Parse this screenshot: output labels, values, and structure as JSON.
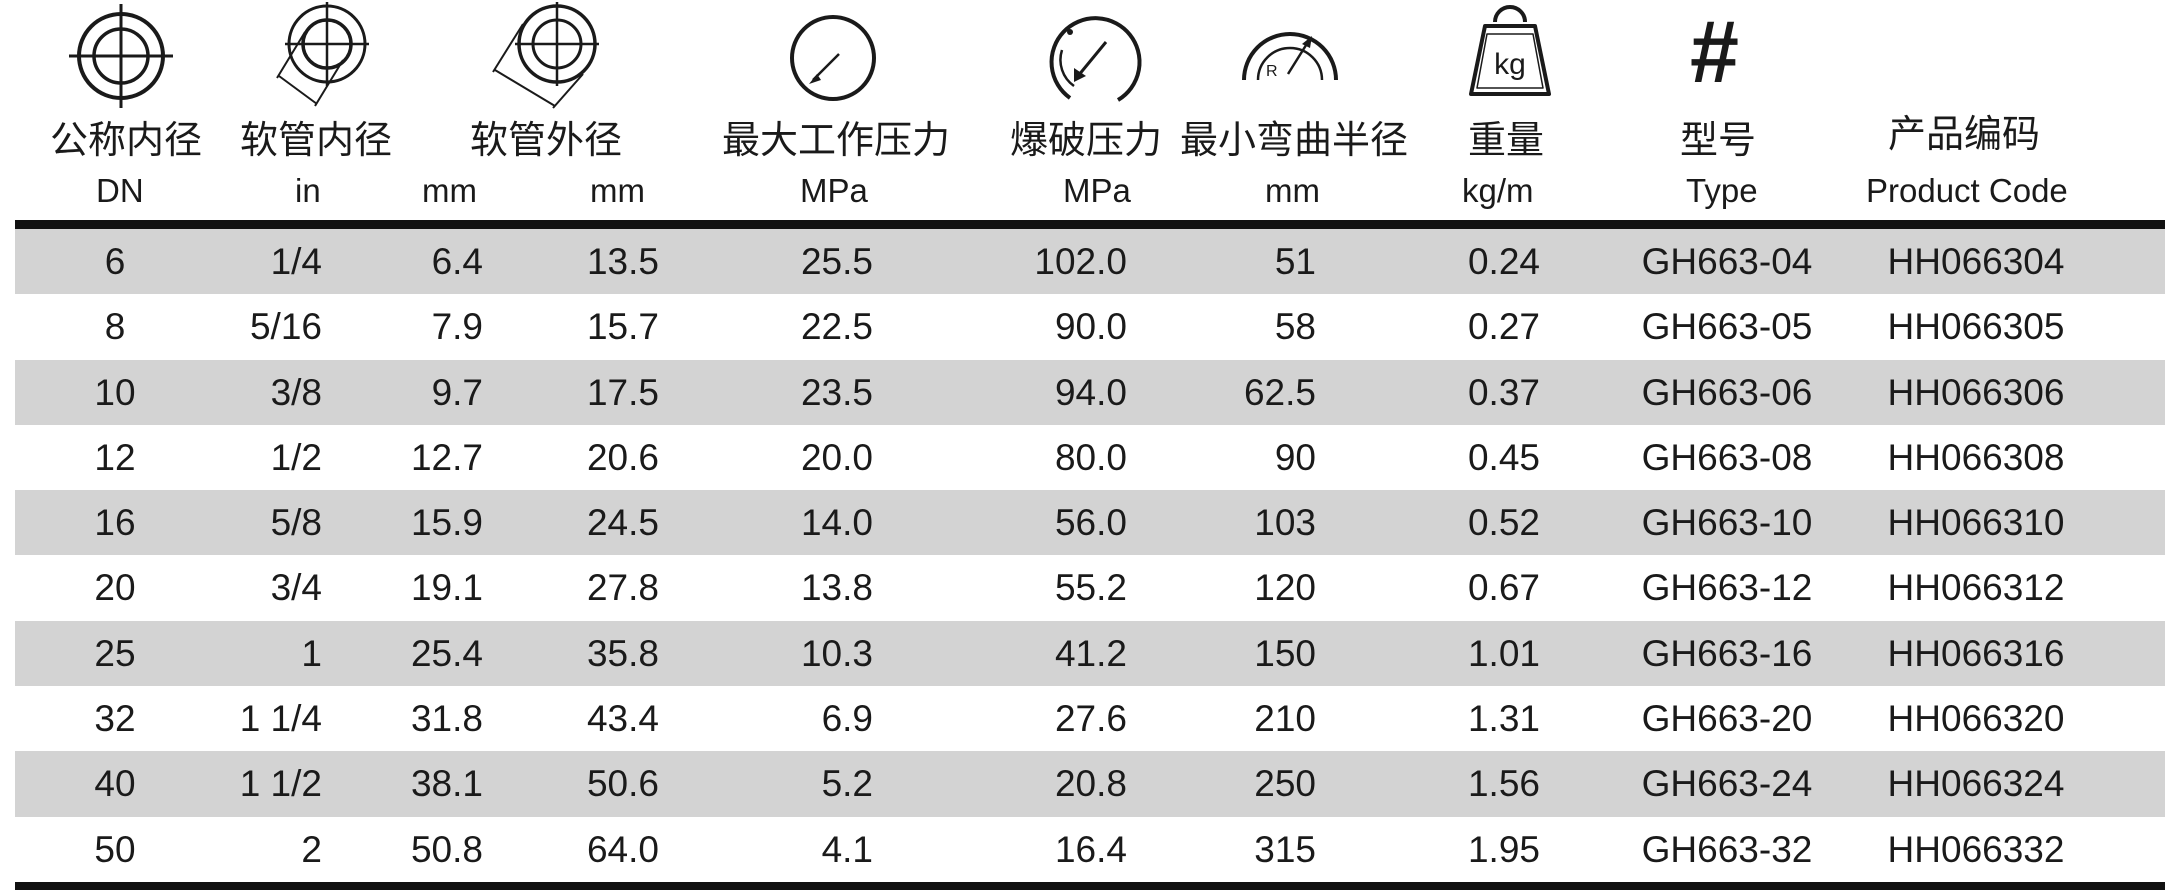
{
  "table": {
    "columns": [
      {
        "cn": "公称内径",
        "unit": "DN"
      },
      {
        "cn": "软管内径",
        "unit": "in"
      },
      {
        "cn": "软管外径",
        "unit": "mm"
      },
      {
        "cn": "",
        "unit": "mm"
      },
      {
        "cn": "最大工作压力",
        "unit": "MPa"
      },
      {
        "cn": "爆破压力",
        "unit": "MPa"
      },
      {
        "cn": "最小弯曲半径",
        "unit": "mm"
      },
      {
        "cn": "重量",
        "unit": "kg/m"
      },
      {
        "cn": "型号",
        "unit": "Type"
      },
      {
        "cn": "产品编码",
        "unit": "Product Code"
      }
    ],
    "icons": {
      "weight_label": "kg",
      "radius_label": "R",
      "type_symbol": "#"
    },
    "rows": [
      [
        "6",
        "1/4",
        "6.4",
        "13.5",
        "25.5",
        "102.0",
        "51",
        "0.24",
        "GH663-04",
        "HH066304"
      ],
      [
        "8",
        "5/16",
        "7.9",
        "15.7",
        "22.5",
        "90.0",
        "58",
        "0.27",
        "GH663-05",
        "HH066305"
      ],
      [
        "10",
        "3/8",
        "9.7",
        "17.5",
        "23.5",
        "94.0",
        "62.5",
        "0.37",
        "GH663-06",
        "HH066306"
      ],
      [
        "12",
        "1/2",
        "12.7",
        "20.6",
        "20.0",
        "80.0",
        "90",
        "0.45",
        "GH663-08",
        "HH066308"
      ],
      [
        "16",
        "5/8",
        "15.9",
        "24.5",
        "14.0",
        "56.0",
        "103",
        "0.52",
        "GH663-10",
        "HH066310"
      ],
      [
        "20",
        "3/4",
        "19.1",
        "27.8",
        "13.8",
        "55.2",
        "120",
        "0.67",
        "GH663-12",
        "HH066312"
      ],
      [
        "25",
        "1",
        "25.4",
        "35.8",
        "10.3",
        "41.2",
        "150",
        "1.01",
        "GH663-16",
        "HH066316"
      ],
      [
        "32",
        "1 1/4",
        "31.8",
        "43.4",
        "6.9",
        "27.6",
        "210",
        "1.31",
        "GH663-20",
        "HH066320"
      ],
      [
        "40",
        "1 1/2",
        "38.1",
        "50.6",
        "5.2",
        "20.8",
        "250",
        "1.56",
        "GH663-24",
        "HH066324"
      ],
      [
        "50",
        "2",
        "50.8",
        "64.0",
        "4.1",
        "16.4",
        "315",
        "1.95",
        "GH663-32",
        "HH066332"
      ]
    ]
  }
}
